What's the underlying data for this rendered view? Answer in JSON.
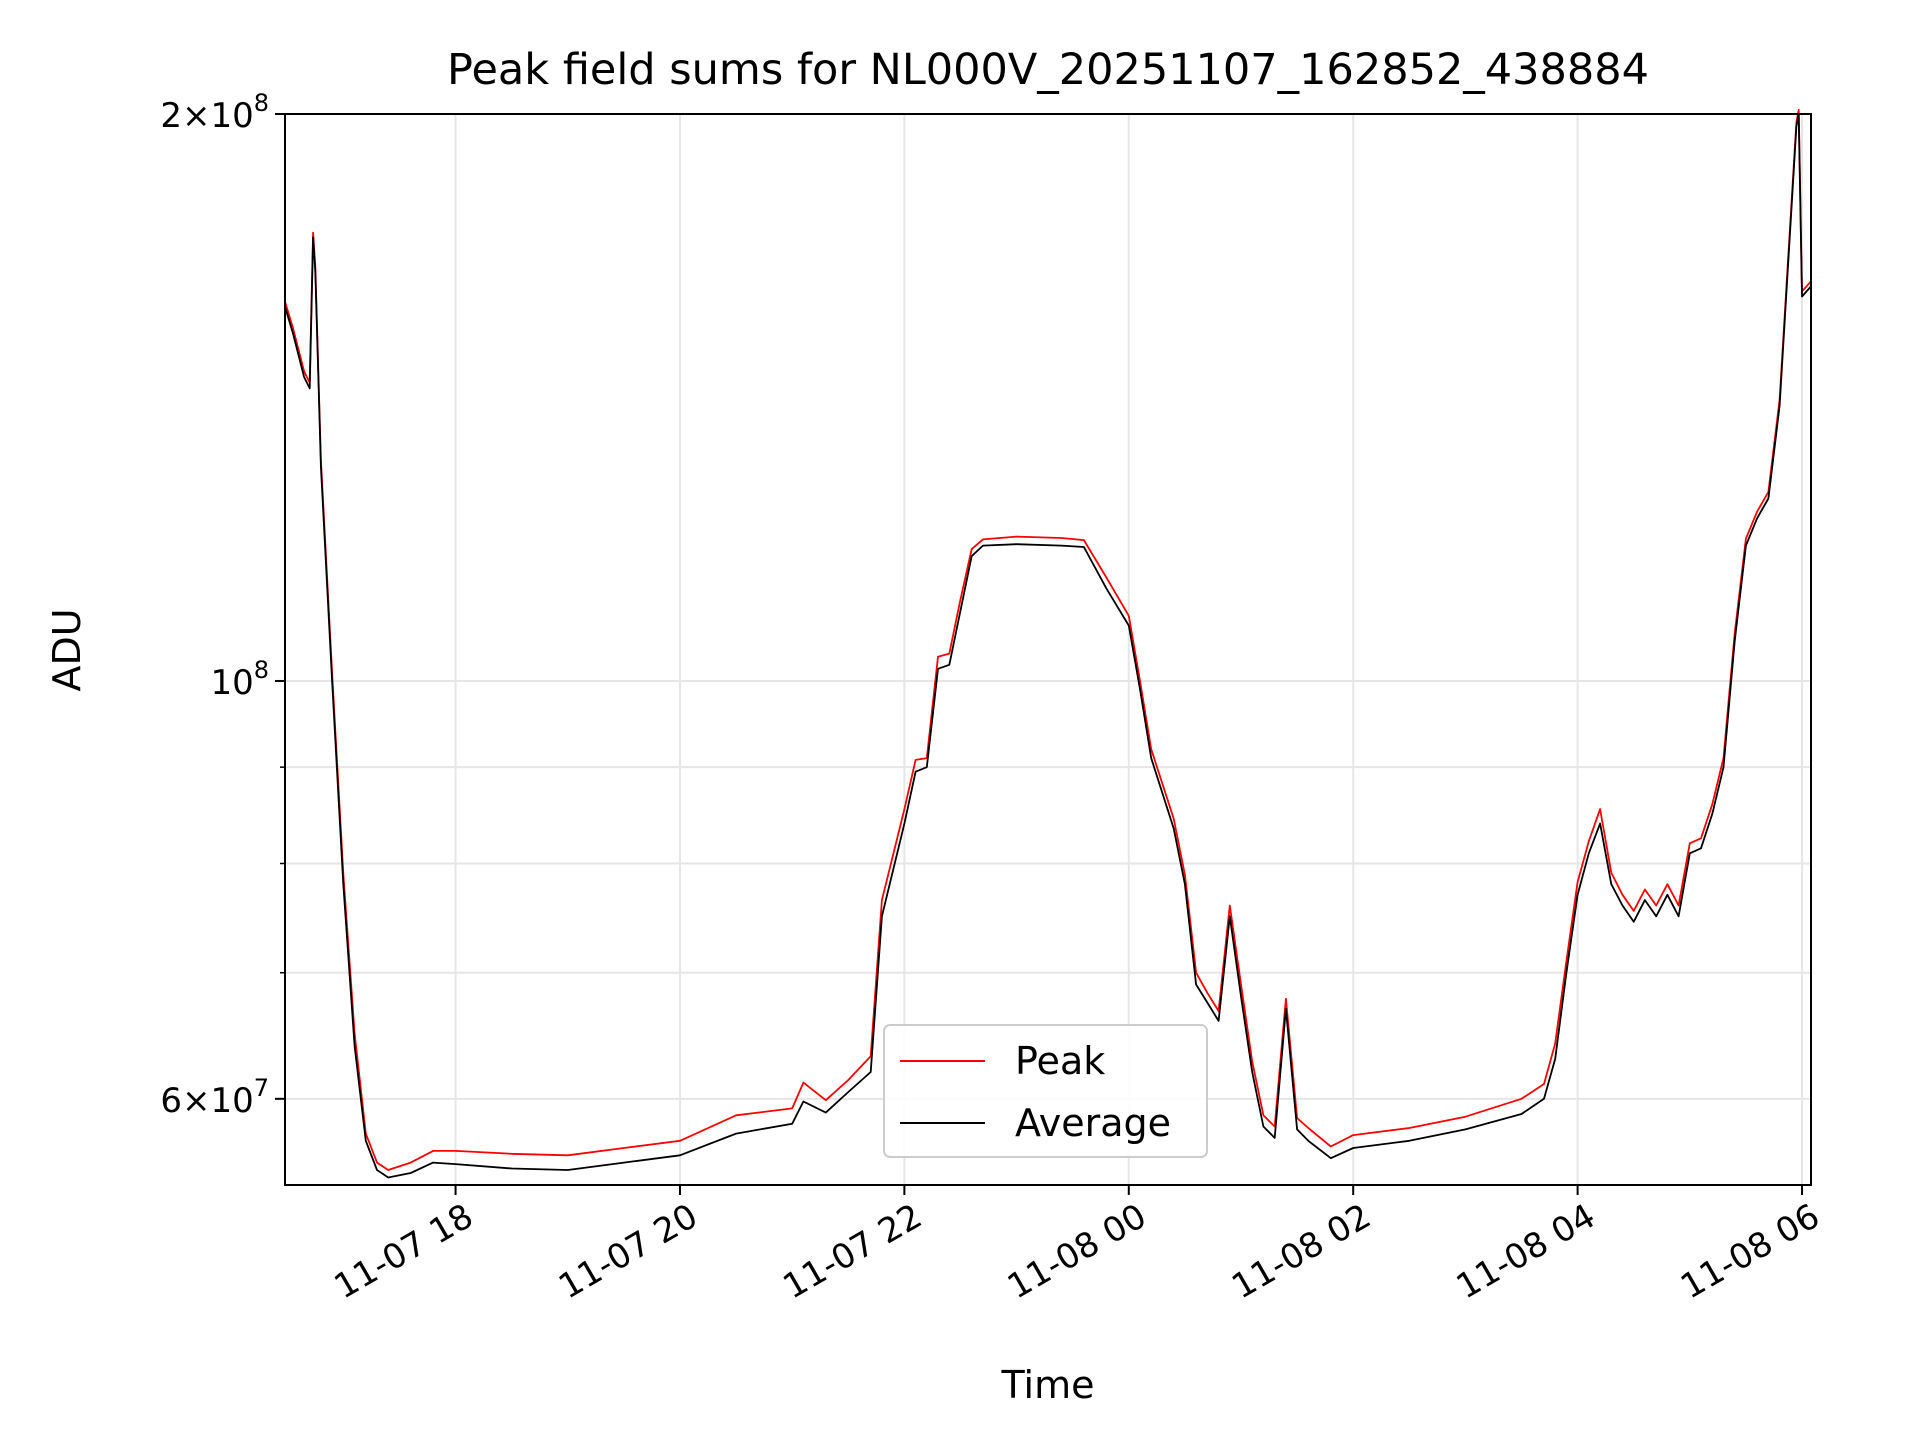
{
  "chart_data": {
    "type": "line",
    "title": "Peak field sums for NL000V_20251107_162852_438884",
    "xlabel": "Time",
    "ylabel": "ADU",
    "yscale": "log",
    "ylim": [
      54000000,
      200000000
    ],
    "xlim_hours_from_2025_11_07_00_00": [
      16.48,
      30.08
    ],
    "grid": true,
    "legend_position": "lower-center",
    "x_ticks": [
      {
        "hour": 18,
        "label": "11-07 18"
      },
      {
        "hour": 20,
        "label": "11-07 20"
      },
      {
        "hour": 22,
        "label": "11-07 22"
      },
      {
        "hour": 24,
        "label": "11-08 00"
      },
      {
        "hour": 26,
        "label": "11-08 02"
      },
      {
        "hour": 28,
        "label": "11-08 04"
      },
      {
        "hour": 30,
        "label": "11-08 06"
      }
    ],
    "y_major_ticks": [
      {
        "value": 60000000,
        "base": "6",
        "exp": "7"
      },
      {
        "value": 100000000,
        "base": "",
        "exp": "8"
      },
      {
        "value": 200000000,
        "base": "2",
        "exp": "8"
      }
    ],
    "y_minor_gridlines": [
      70000000,
      80000000,
      90000000
    ],
    "x_hours": [
      16.48,
      16.55,
      16.65,
      16.7,
      16.73,
      16.75,
      16.8,
      16.9,
      17.0,
      17.1,
      17.2,
      17.3,
      17.4,
      17.6,
      17.8,
      18.0,
      18.5,
      19.0,
      19.5,
      20.0,
      20.5,
      21.0,
      21.1,
      21.3,
      21.5,
      21.7,
      21.8,
      22.0,
      22.1,
      22.2,
      22.3,
      22.4,
      22.5,
      22.6,
      22.7,
      23.0,
      23.4,
      23.6,
      23.8,
      24.0,
      24.1,
      24.2,
      24.4,
      24.5,
      24.6,
      24.7,
      24.8,
      24.9,
      25.0,
      25.1,
      25.2,
      25.3,
      25.4,
      25.5,
      25.6,
      25.8,
      26.0,
      26.5,
      27.0,
      27.5,
      27.7,
      27.8,
      27.9,
      28.0,
      28.1,
      28.2,
      28.3,
      28.4,
      28.5,
      28.6,
      28.7,
      28.8,
      28.9,
      29.0,
      29.1,
      29.2,
      29.3,
      29.4,
      29.5,
      29.6,
      29.7,
      29.8,
      29.95,
      29.97,
      30.0,
      30.08
    ],
    "series": [
      {
        "name": "Average",
        "color": "#000000",
        "values": [
          158000000,
          153000000,
          145000000,
          143000000,
          172000000,
          165000000,
          130000000,
          100000000,
          78000000,
          64000000,
          57000000,
          55000000,
          54500000,
          54800000,
          55500000,
          55400000,
          55100000,
          55000000,
          55500000,
          56000000,
          57500000,
          58200000,
          59800000,
          59000000,
          60500000,
          62000000,
          75000000,
          84000000,
          89500000,
          90000000,
          101500000,
          102000000,
          109000000,
          116500000,
          118000000,
          118200000,
          118000000,
          117800000,
          112000000,
          107000000,
          99000000,
          91000000,
          83500000,
          78000000,
          69000000,
          67500000,
          66000000,
          75000000,
          68000000,
          62000000,
          58000000,
          57200000,
          67000000,
          57800000,
          57000000,
          55800000,
          56500000,
          57000000,
          57800000,
          58900000,
          60000000,
          63000000,
          70000000,
          77000000,
          81000000,
          84000000,
          78000000,
          76000000,
          74500000,
          76500000,
          75000000,
          77000000,
          75000000,
          81000000,
          81500000,
          85000000,
          90000000,
          105000000,
          118000000,
          122000000,
          125000000,
          140000000,
          197000000,
          200000000,
          160000000,
          162000000
        ]
      },
      {
        "name": "Peak",
        "color": "#ff0000",
        "values": [
          159000000,
          154000000,
          146000000,
          144000000,
          173000000,
          166000000,
          131000000,
          101000000,
          79000000,
          65000000,
          57500000,
          55500000,
          55000000,
          55500000,
          56300000,
          56300000,
          56100000,
          56000000,
          56500000,
          57000000,
          58800000,
          59300000,
          61200000,
          59900000,
          61400000,
          63200000,
          76500000,
          85500000,
          90800000,
          91000000,
          103000000,
          103400000,
          110500000,
          117500000,
          118900000,
          119300000,
          119100000,
          118800000,
          113500000,
          108300000,
          100000000,
          92000000,
          84500000,
          78900000,
          70000000,
          68300000,
          66800000,
          76000000,
          69000000,
          62800000,
          58800000,
          58000000,
          67800000,
          58600000,
          57900000,
          56600000,
          57400000,
          57900000,
          58700000,
          60000000,
          61100000,
          64200000,
          71000000,
          78200000,
          82200000,
          85500000,
          79100000,
          77000000,
          75500000,
          77500000,
          76000000,
          78000000,
          76000000,
          82000000,
          82500000,
          86000000,
          91000000,
          106000000,
          119000000,
          123000000,
          126000000,
          141000000,
          198000000,
          201000000,
          161000000,
          163000000
        ]
      }
    ]
  }
}
